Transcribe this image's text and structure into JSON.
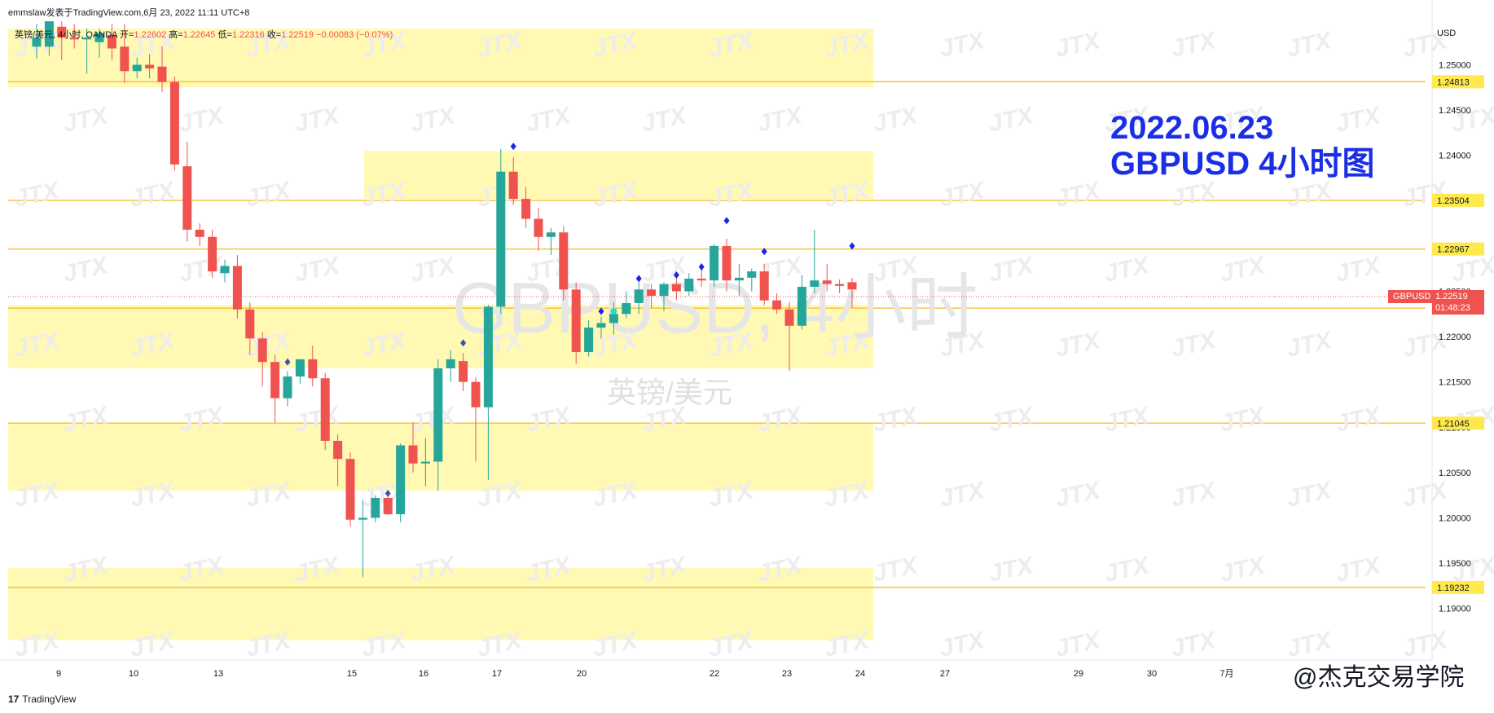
{
  "header": {
    "text": "emmslaw发表于TradingView.com,6月 23, 2022 11:11 UTC+8"
  },
  "ohlc": {
    "symbol": "英镑/美元, 4小时, OANDA",
    "open_label": "开=",
    "open": "1.22602",
    "high_label": "高=",
    "high": "1.22645",
    "low_label": "低=",
    "low": "1.22316",
    "close_label": "收=",
    "close": "1.22519",
    "change": "−0.00083 (−0.07%)"
  },
  "annotation": {
    "line1": "2022.06.23",
    "line2": "GBPUSD 4小时图"
  },
  "watermark": {
    "symbol": "GBPUSD, 4小时",
    "desc": "英镑/美元",
    "logo": "JTX"
  },
  "price_axis": {
    "currency": "USD",
    "ticker": "GBPUSD",
    "last_price": "1.22519",
    "countdown": "01:48:23"
  },
  "footer": {
    "brand": "TradingView",
    "creator": "@杰克交易学院"
  },
  "colors": {
    "up": "#26a69a",
    "down": "#ef5350",
    "zone": "#fff9b3",
    "level": "#f6c342",
    "marker": "#1a24e6",
    "annotation": "#1a2ee6"
  },
  "chart_data": {
    "type": "candlestick",
    "title": "",
    "ylim": [
      1.186,
      1.2565
    ],
    "y_ticks": [
      "1.25000",
      "1.24500",
      "1.24000",
      "1.23500",
      "1.23000",
      "1.22500",
      "1.22000",
      "1.21500",
      "1.21000",
      "1.20500",
      "1.20000",
      "1.19500",
      "1.19000"
    ],
    "x_ticks": [
      "9",
      "10",
      "13",
      "15",
      "16",
      "17",
      "20",
      "22",
      "23",
      "24",
      "27",
      "29",
      "30",
      "7月"
    ],
    "levels": [
      "1.24813",
      "1.23504",
      "1.22967",
      "1.22315",
      "1.21045",
      "1.19232"
    ],
    "zones": [
      {
        "low": 1.2475,
        "high": 1.254
      },
      {
        "low": 1.2352,
        "high": 1.2405
      },
      {
        "low": 1.2165,
        "high": 1.2235
      },
      {
        "low": 1.203,
        "high": 1.2105
      },
      {
        "low": 1.1865,
        "high": 1.1945
      }
    ],
    "candles": [
      {
        "o": 1.252,
        "h": 1.2545,
        "l": 1.2507,
        "c": 1.253
      },
      {
        "o": 1.252,
        "h": 1.2547,
        "l": 1.251,
        "c": 1.2548
      },
      {
        "o": 1.2542,
        "h": 1.2548,
        "l": 1.2505,
        "c": 1.253
      },
      {
        "o": 1.253,
        "h": 1.2545,
        "l": 1.2518,
        "c": 1.2528
      },
      {
        "o": 1.2528,
        "h": 1.254,
        "l": 1.249,
        "c": 1.253
      },
      {
        "o": 1.2525,
        "h": 1.254,
        "l": 1.2508,
        "c": 1.2535
      },
      {
        "o": 1.2533,
        "h": 1.2545,
        "l": 1.2505,
        "c": 1.2518
      },
      {
        "o": 1.252,
        "h": 1.2545,
        "l": 1.248,
        "c": 1.2493
      },
      {
        "o": 1.2493,
        "h": 1.2508,
        "l": 1.2485,
        "c": 1.25
      },
      {
        "o": 1.25,
        "h": 1.2512,
        "l": 1.2485,
        "c": 1.2496
      },
      {
        "o": 1.2498,
        "h": 1.252,
        "l": 1.247,
        "c": 1.2481
      },
      {
        "o": 1.2481,
        "h": 1.2487,
        "l": 1.2383,
        "c": 1.239
      },
      {
        "o": 1.2388,
        "h": 1.2415,
        "l": 1.2305,
        "c": 1.2318
      },
      {
        "o": 1.2318,
        "h": 1.2325,
        "l": 1.23,
        "c": 1.231
      },
      {
        "o": 1.231,
        "h": 1.2318,
        "l": 1.2265,
        "c": 1.2272
      },
      {
        "o": 1.227,
        "h": 1.2285,
        "l": 1.226,
        "c": 1.2278
      },
      {
        "o": 1.2278,
        "h": 1.229,
        "l": 1.222,
        "c": 1.223
      },
      {
        "o": 1.223,
        "h": 1.2238,
        "l": 1.218,
        "c": 1.2198
      },
      {
        "o": 1.2198,
        "h": 1.2205,
        "l": 1.2145,
        "c": 1.2172
      },
      {
        "o": 1.2172,
        "h": 1.218,
        "l": 1.2105,
        "c": 1.2132
      },
      {
        "o": 1.2132,
        "h": 1.2162,
        "l": 1.2123,
        "c": 1.2156
      },
      {
        "o": 1.2156,
        "h": 1.2175,
        "l": 1.2148,
        "c": 1.2175
      },
      {
        "o": 1.2175,
        "h": 1.219,
        "l": 1.2145,
        "c": 1.2154
      },
      {
        "o": 1.2154,
        "h": 1.216,
        "l": 1.2075,
        "c": 1.2085
      },
      {
        "o": 1.2085,
        "h": 1.2092,
        "l": 1.2035,
        "c": 1.2065
      },
      {
        "o": 1.2065,
        "h": 1.2072,
        "l": 1.199,
        "c": 1.1998
      },
      {
        "o": 1.1998,
        "h": 1.202,
        "l": 1.1935,
        "c": 1.2
      },
      {
        "o": 1.2,
        "h": 1.2025,
        "l": 1.1995,
        "c": 1.2022
      },
      {
        "o": 1.2022,
        "h": 1.203,
        "l": 1.2003,
        "c": 1.2004
      },
      {
        "o": 1.2004,
        "h": 1.2082,
        "l": 1.1995,
        "c": 1.208
      },
      {
        "o": 1.208,
        "h": 1.2105,
        "l": 1.205,
        "c": 1.206
      },
      {
        "o": 1.206,
        "h": 1.2088,
        "l": 1.2035,
        "c": 1.2062
      },
      {
        "o": 1.2062,
        "h": 1.2175,
        "l": 1.203,
        "c": 1.2165
      },
      {
        "o": 1.2165,
        "h": 1.2185,
        "l": 1.215,
        "c": 1.2175
      },
      {
        "o": 1.2173,
        "h": 1.2182,
        "l": 1.214,
        "c": 1.215
      },
      {
        "o": 1.215,
        "h": 1.2155,
        "l": 1.2062,
        "c": 1.2122
      },
      {
        "o": 1.2122,
        "h": 1.2235,
        "l": 1.2042,
        "c": 1.2233
      },
      {
        "o": 1.2233,
        "h": 1.2407,
        "l": 1.2225,
        "c": 1.2382
      },
      {
        "o": 1.2382,
        "h": 1.2398,
        "l": 1.2345,
        "c": 1.2352
      },
      {
        "o": 1.2352,
        "h": 1.2365,
        "l": 1.232,
        "c": 1.233
      },
      {
        "o": 1.233,
        "h": 1.2342,
        "l": 1.2295,
        "c": 1.231
      },
      {
        "o": 1.231,
        "h": 1.232,
        "l": 1.229,
        "c": 1.2315
      },
      {
        "o": 1.2315,
        "h": 1.2322,
        "l": 1.224,
        "c": 1.2252
      },
      {
        "o": 1.2252,
        "h": 1.226,
        "l": 1.217,
        "c": 1.2183
      },
      {
        "o": 1.2183,
        "h": 1.2218,
        "l": 1.2178,
        "c": 1.221
      },
      {
        "o": 1.221,
        "h": 1.2222,
        "l": 1.2198,
        "c": 1.2215
      },
      {
        "o": 1.2215,
        "h": 1.2238,
        "l": 1.2202,
        "c": 1.2225
      },
      {
        "o": 1.2225,
        "h": 1.225,
        "l": 1.222,
        "c": 1.2237
      },
      {
        "o": 1.2237,
        "h": 1.226,
        "l": 1.2225,
        "c": 1.2252
      },
      {
        "o": 1.2252,
        "h": 1.2258,
        "l": 1.2232,
        "c": 1.2245
      },
      {
        "o": 1.2245,
        "h": 1.226,
        "l": 1.2228,
        "c": 1.2258
      },
      {
        "o": 1.2258,
        "h": 1.2265,
        "l": 1.224,
        "c": 1.225
      },
      {
        "o": 1.225,
        "h": 1.227,
        "l": 1.2245,
        "c": 1.2264
      },
      {
        "o": 1.2264,
        "h": 1.2275,
        "l": 1.2255,
        "c": 1.2262
      },
      {
        "o": 1.2262,
        "h": 1.2302,
        "l": 1.2255,
        "c": 1.23
      },
      {
        "o": 1.23,
        "h": 1.2308,
        "l": 1.225,
        "c": 1.2262
      },
      {
        "o": 1.2262,
        "h": 1.228,
        "l": 1.2245,
        "c": 1.2265
      },
      {
        "o": 1.2265,
        "h": 1.2275,
        "l": 1.225,
        "c": 1.2272
      },
      {
        "o": 1.2272,
        "h": 1.228,
        "l": 1.2235,
        "c": 1.224
      },
      {
        "o": 1.224,
        "h": 1.2248,
        "l": 1.2225,
        "c": 1.223
      },
      {
        "o": 1.223,
        "h": 1.2238,
        "l": 1.2162,
        "c": 1.2212
      },
      {
        "o": 1.2212,
        "h": 1.2268,
        "l": 1.2208,
        "c": 1.2255
      },
      {
        "o": 1.2255,
        "h": 1.2318,
        "l": 1.2248,
        "c": 1.2262
      },
      {
        "o": 1.2262,
        "h": 1.228,
        "l": 1.225,
        "c": 1.2258
      },
      {
        "o": 1.2258,
        "h": 1.2263,
        "l": 1.2248,
        "c": 1.2256
      },
      {
        "o": 1.226,
        "h": 1.2265,
        "l": 1.2232,
        "c": 1.2252
      }
    ],
    "markers": [
      {
        "i": 20,
        "price": 1.2172,
        "color": "#3f51b5"
      },
      {
        "i": 28,
        "price": 1.2027,
        "color": "#3f51b5"
      },
      {
        "i": 34,
        "price": 1.2193,
        "color": "#3f51b5"
      },
      {
        "i": 38,
        "price": 1.241,
        "color": "#1a24e6"
      },
      {
        "i": 45,
        "price": 1.2228,
        "color": "#1a24e6"
      },
      {
        "i": 46,
        "price": 1.2228,
        "color": "#36d6c3"
      },
      {
        "i": 48,
        "price": 1.2264,
        "color": "#1a24e6"
      },
      {
        "i": 51,
        "price": 1.2268,
        "color": "#1a24e6"
      },
      {
        "i": 53,
        "price": 1.2277,
        "color": "#1a24e6"
      },
      {
        "i": 55,
        "price": 1.2328,
        "color": "#1a24e6"
      },
      {
        "i": 58,
        "price": 1.2294,
        "color": "#1a24e6"
      },
      {
        "i": 65,
        "price": 1.23,
        "color": "#1a24e6"
      }
    ]
  }
}
